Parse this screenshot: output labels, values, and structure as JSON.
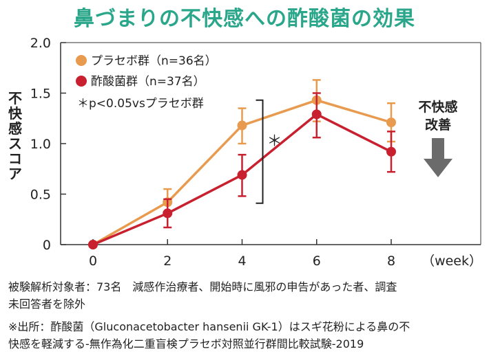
{
  "chart_data": {
    "type": "line",
    "title": "鼻づまりの不快感への酢酸菌の効果",
    "ylabel": "不快感スコア",
    "x_unit": "（week）",
    "x": [
      0,
      2,
      4,
      6,
      8
    ],
    "x_ticks": [
      "0",
      "2",
      "4",
      "6",
      "8"
    ],
    "ylim": [
      0,
      2.0
    ],
    "y_ticks": [
      "0",
      "0.5",
      "1.0",
      "1.5",
      "2.0"
    ],
    "grid": false,
    "legend_position": "top-left",
    "series": [
      {
        "name": "プラセボ群（n=36名）",
        "color": "#e89a4e",
        "values": [
          0,
          0.42,
          1.18,
          1.43,
          1.21
        ],
        "err_low": [
          0,
          0.3,
          1.0,
          1.22,
          1.02
        ],
        "err_high": [
          0,
          0.55,
          1.35,
          1.63,
          1.4
        ]
      },
      {
        "name": "酢酸菌群（n=37名）",
        "color": "#c8202f",
        "values": [
          0,
          0.31,
          0.69,
          1.29,
          0.92
        ],
        "err_low": [
          0,
          0.17,
          0.48,
          1.06,
          0.72
        ],
        "err_high": [
          0,
          0.45,
          0.89,
          1.5,
          1.12
        ]
      }
    ],
    "note": "＊p<0.05vsプラセボ群",
    "significance_mark": "＊",
    "annotation": [
      "不快感",
      "改善"
    ]
  },
  "footnotes": [
    "被験解析対象者：73名　減感作治療者、開始時に風邪の申告があった者、調査",
    "未回答者を除外",
    "※出所：酢酸菌（Gluconacetobacter hansenii GK-1）はスギ花粉による鼻の不",
    "快感を軽減する-無作為化二重盲検プラセボ対照並行群間比較試験-2019"
  ],
  "colors": {
    "title": "#2aa68a",
    "arrow": "#6b6b6b"
  }
}
